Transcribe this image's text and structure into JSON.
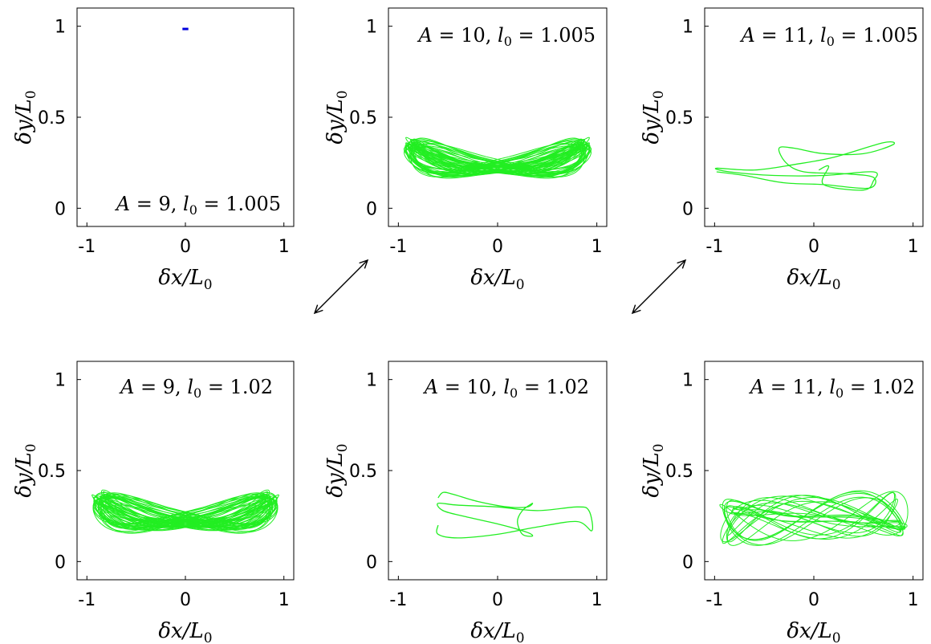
{
  "chart_data": [
    {
      "type": "line",
      "panel": "A9-l1.005",
      "annotation": {
        "a": "9",
        "l0": "1.005"
      },
      "xlabel": "δx/L0",
      "ylabel": "δy/L0",
      "xlim": [
        -1.1,
        1.1
      ],
      "ylim": [
        -0.1,
        1.1
      ],
      "xticks": [
        "-1",
        "0",
        "1"
      ],
      "yticks": [
        "0",
        "0.5",
        "1"
      ],
      "color": "#0000dd",
      "trajectory": {
        "kind": "point",
        "x": [
          -0.03,
          0.03
        ],
        "y": [
          0.985,
          0.985
        ]
      }
    },
    {
      "type": "line",
      "panel": "A10-l1.005",
      "annotation": {
        "a": "10",
        "l0": "1.005"
      },
      "xlabel": "δx/L0",
      "ylabel": "δy/L0",
      "xlim": [
        -1.1,
        1.1
      ],
      "ylim": [
        -0.1,
        1.1
      ],
      "xticks": [
        "-1",
        "0",
        "1"
      ],
      "yticks": [
        "0",
        "0.5",
        "1"
      ],
      "color": "#22ee22",
      "trajectory": {
        "kind": "chaotic",
        "x_range": [
          -0.95,
          0.95
        ],
        "y_range": [
          0.15,
          0.38
        ]
      }
    },
    {
      "type": "line",
      "panel": "A11-l1.005",
      "annotation": {
        "a": "11",
        "l0": "1.005"
      },
      "xlabel": "δx/L0",
      "ylabel": "δy/L0",
      "xlim": [
        -1.1,
        1.1
      ],
      "ylim": [
        -0.1,
        1.1
      ],
      "xticks": [
        "-1",
        "0",
        "1"
      ],
      "yticks": [
        "0",
        "0.5",
        "1"
      ],
      "color": "#22ee22",
      "trajectory": {
        "kind": "path",
        "x": [
          -0.98,
          -0.7,
          -0.3,
          0.1,
          0.55,
          0.6,
          0.3,
          -0.1,
          -0.28,
          -0.35,
          -0.2,
          0.1,
          0.5,
          0.8,
          0.7,
          0.2,
          -0.2,
          -0.6,
          -0.98,
          -0.85,
          -0.4,
          0.1,
          0.6,
          0.6,
          0.5,
          0.1,
          0.15,
          0.05
        ],
        "y": [
          0.2,
          0.18,
          0.14,
          0.13,
          0.11,
          0.17,
          0.19,
          0.2,
          0.25,
          0.33,
          0.33,
          0.3,
          0.3,
          0.35,
          0.36,
          0.28,
          0.24,
          0.21,
          0.22,
          0.2,
          0.18,
          0.18,
          0.2,
          0.15,
          0.1,
          0.13,
          0.23,
          0.21
        ]
      }
    },
    {
      "type": "line",
      "panel": "A9-l1.02",
      "annotation": {
        "a": "9",
        "l0": "1.02"
      },
      "xlabel": "δx/L0",
      "ylabel": "δy/L0",
      "xlim": [
        -1.1,
        1.1
      ],
      "ylim": [
        -0.1,
        1.1
      ],
      "xticks": [
        "-1",
        "0",
        "1"
      ],
      "yticks": [
        "0",
        "0.5",
        "1"
      ],
      "color": "#22ee22",
      "trajectory": {
        "kind": "chaotic",
        "x_range": [
          -0.95,
          0.95
        ],
        "y_range": [
          0.14,
          0.38
        ]
      }
    },
    {
      "type": "line",
      "panel": "A10-l1.02",
      "annotation": {
        "a": "10",
        "l0": "1.02"
      },
      "xlabel": "δx/L0",
      "ylabel": "δy/L0",
      "xlim": [
        -1.1,
        1.1
      ],
      "ylim": [
        -0.1,
        1.1
      ],
      "xticks": [
        "-1",
        "0",
        "1"
      ],
      "yticks": [
        "0",
        "0.5",
        "1"
      ],
      "color": "#22ee22",
      "trajectory": {
        "kind": "path",
        "x": [
          -0.6,
          -0.55,
          -0.45,
          -0.2,
          0.1,
          0.3,
          0.35,
          0.25,
          0.2,
          0.25,
          0.35,
          0.3,
          0.05,
          -0.35,
          -0.55,
          -0.6,
          -0.4,
          0.0,
          0.4,
          0.8,
          0.92,
          0.95,
          0.8,
          0.4,
          0.0,
          -0.4,
          -0.6,
          -0.6
        ],
        "y": [
          0.35,
          0.38,
          0.37,
          0.33,
          0.3,
          0.3,
          0.32,
          0.28,
          0.22,
          0.15,
          0.14,
          0.16,
          0.2,
          0.25,
          0.28,
          0.32,
          0.31,
          0.3,
          0.28,
          0.3,
          0.28,
          0.17,
          0.22,
          0.19,
          0.15,
          0.13,
          0.15,
          0.2
        ]
      }
    },
    {
      "type": "line",
      "panel": "A11-l1.02",
      "annotation": {
        "a": "11",
        "l0": "1.02"
      },
      "xlabel": "δx/L0",
      "ylabel": "δy/L0",
      "xlim": [
        -1.1,
        1.1
      ],
      "ylim": [
        -0.1,
        1.1
      ],
      "xticks": [
        "-1",
        "0",
        "1"
      ],
      "yticks": [
        "0",
        "0.5",
        "1"
      ],
      "color": "#22ee22",
      "trajectory": {
        "kind": "banded",
        "x_range": [
          -0.95,
          0.95
        ],
        "y_range": [
          0.1,
          0.38
        ]
      }
    }
  ]
}
